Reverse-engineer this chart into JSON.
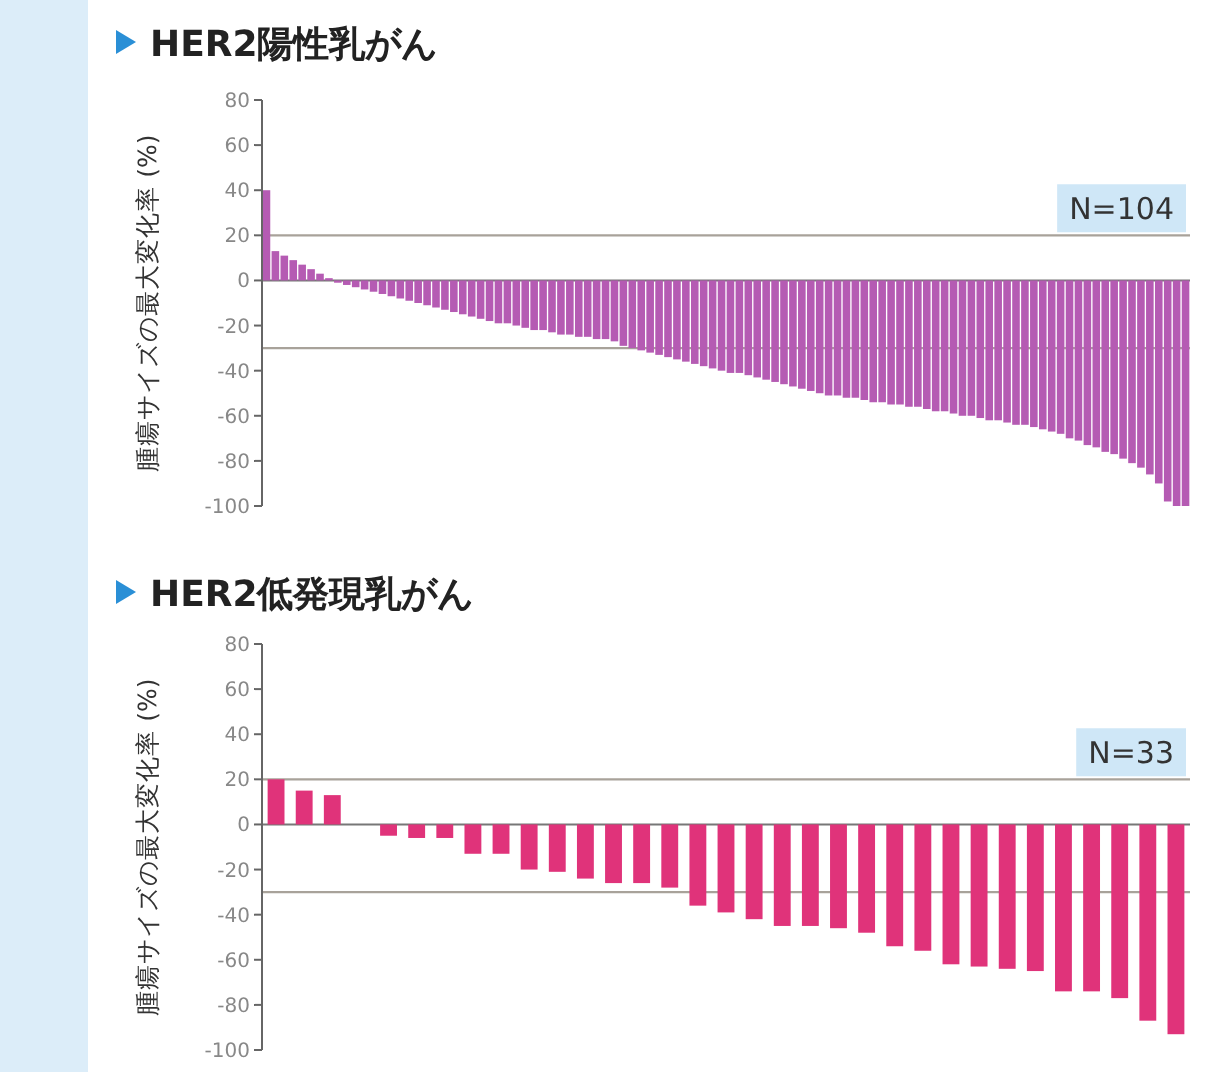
{
  "chart_data": [
    {
      "type": "bar",
      "title": "HER2陽性乳がん",
      "ylabel": "腫瘍サイズの最大変化率 (%)",
      "annotations": [
        "N=104"
      ],
      "tick_labels": "y",
      "color": "#b55bb3",
      "categories": [
        null,
        null,
        null,
        null,
        null,
        null,
        null,
        null,
        null,
        null,
        null,
        null,
        null,
        null,
        null,
        null,
        null,
        null,
        null,
        null,
        null,
        null,
        null,
        null,
        null,
        null,
        null,
        null,
        null,
        null,
        null,
        null,
        null,
        null,
        null,
        null,
        null,
        null,
        null,
        null,
        null,
        null,
        null,
        null,
        null,
        null,
        null,
        null,
        null,
        null,
        null,
        null,
        null,
        null,
        null,
        null,
        null,
        null,
        null,
        null,
        null,
        null,
        null,
        null,
        null,
        null,
        null,
        null,
        null,
        null,
        null,
        null,
        null,
        null,
        null,
        null,
        null,
        null,
        null,
        null,
        null,
        null,
        null,
        null,
        null,
        null,
        null,
        null,
        null,
        null,
        null,
        null,
        null,
        null,
        null,
        null,
        null,
        null,
        null,
        null,
        null,
        null,
        null,
        null
      ],
      "values": [
        40,
        13,
        11,
        9,
        7,
        5,
        3,
        1,
        -1,
        -2,
        -3,
        -4,
        -5,
        -6,
        -7,
        -8,
        -9,
        -10,
        -11,
        -12,
        -13,
        -14,
        -15,
        -16,
        -17,
        -18,
        -19,
        -19,
        -20,
        -21,
        -22,
        -22,
        -23,
        -24,
        -24,
        -25,
        -25,
        -26,
        -26,
        -27,
        -29,
        -30,
        -31,
        -32,
        -33,
        -34,
        -35,
        -36,
        -37,
        -38,
        -39,
        -40,
        -41,
        -41,
        -42,
        -43,
        -44,
        -45,
        -46,
        -47,
        -48,
        -49,
        -50,
        -51,
        -51,
        -52,
        -52,
        -53,
        -54,
        -54,
        -55,
        -55,
        -56,
        -56,
        -57,
        -58,
        -58,
        -59,
        -60,
        -60,
        -61,
        -62,
        -62,
        -63,
        -64,
        -64,
        -65,
        -66,
        -67,
        -68,
        -70,
        -71,
        -73,
        -74,
        -76,
        -77,
        -79,
        -81,
        -83,
        -86,
        -90,
        -98,
        -100,
        -100
      ],
      "ylim": [
        -100,
        80
      ],
      "yticks": [
        -100,
        -80,
        -60,
        -40,
        -20,
        0,
        20,
        40,
        60,
        80
      ],
      "ref_lines": [
        {
          "axis": "y",
          "value": 20,
          "color": "#a8a29a"
        },
        {
          "axis": "y",
          "value": -30,
          "color": "#a8a29a"
        }
      ]
    },
    {
      "type": "bar",
      "title": "HER2低発現乳がん",
      "ylabel": "腫瘍サイズの最大変化率 (%)",
      "annotations": [
        "N=33"
      ],
      "tick_labels": "y",
      "color": "#e0337a",
      "categories": [
        null,
        null,
        null,
        null,
        null,
        null,
        null,
        null,
        null,
        null,
        null,
        null,
        null,
        null,
        null,
        null,
        null,
        null,
        null,
        null,
        null,
        null,
        null,
        null,
        null,
        null,
        null,
        null,
        null,
        null,
        null,
        null,
        null
      ],
      "values": [
        20,
        15,
        13,
        0,
        -5,
        -6,
        -6,
        -13,
        -13,
        -20,
        -21,
        -24,
        -26,
        -26,
        -28,
        -36,
        -39,
        -42,
        -45,
        -45,
        -46,
        -48,
        -54,
        -56,
        -62,
        -63,
        -64,
        -65,
        -74,
        -74,
        -77,
        -87,
        -93
      ],
      "ylim": [
        -100,
        80
      ],
      "yticks": [
        -100,
        -80,
        -60,
        -40,
        -20,
        0,
        20,
        40,
        60,
        80
      ],
      "ref_lines": [
        {
          "axis": "y",
          "value": 20,
          "color": "#a8a29a"
        },
        {
          "axis": "y",
          "value": -30,
          "color": "#a8a29a"
        }
      ]
    }
  ]
}
